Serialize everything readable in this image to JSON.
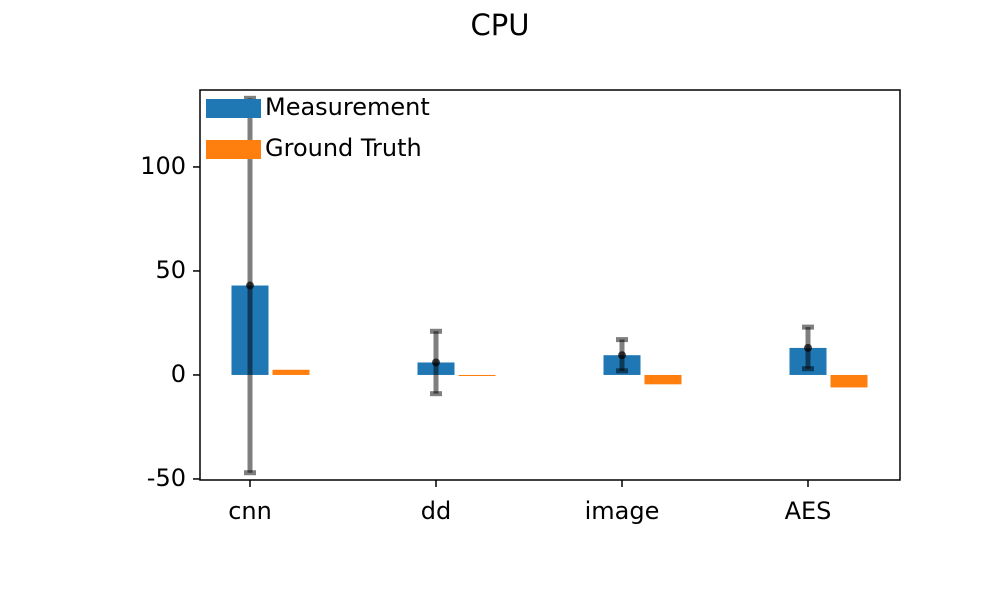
{
  "chart_data": {
    "type": "bar",
    "title": "CPU",
    "categories": [
      "cnn",
      "dd",
      "image",
      "AES"
    ],
    "series": [
      {
        "name": "Measurement",
        "color": "#1f77b4",
        "values": [
          43,
          6,
          9.5,
          13
        ],
        "errors": [
          90,
          15,
          7.5,
          10
        ]
      },
      {
        "name": "Ground Truth",
        "color": "#ff7f0e",
        "values": [
          2.5,
          -0.5,
          -4.5,
          -6
        ]
      }
    ],
    "ylim": [
      -50.5,
      137
    ],
    "yticks": [
      -50,
      0,
      50,
      100
    ],
    "legend": "upper left"
  }
}
